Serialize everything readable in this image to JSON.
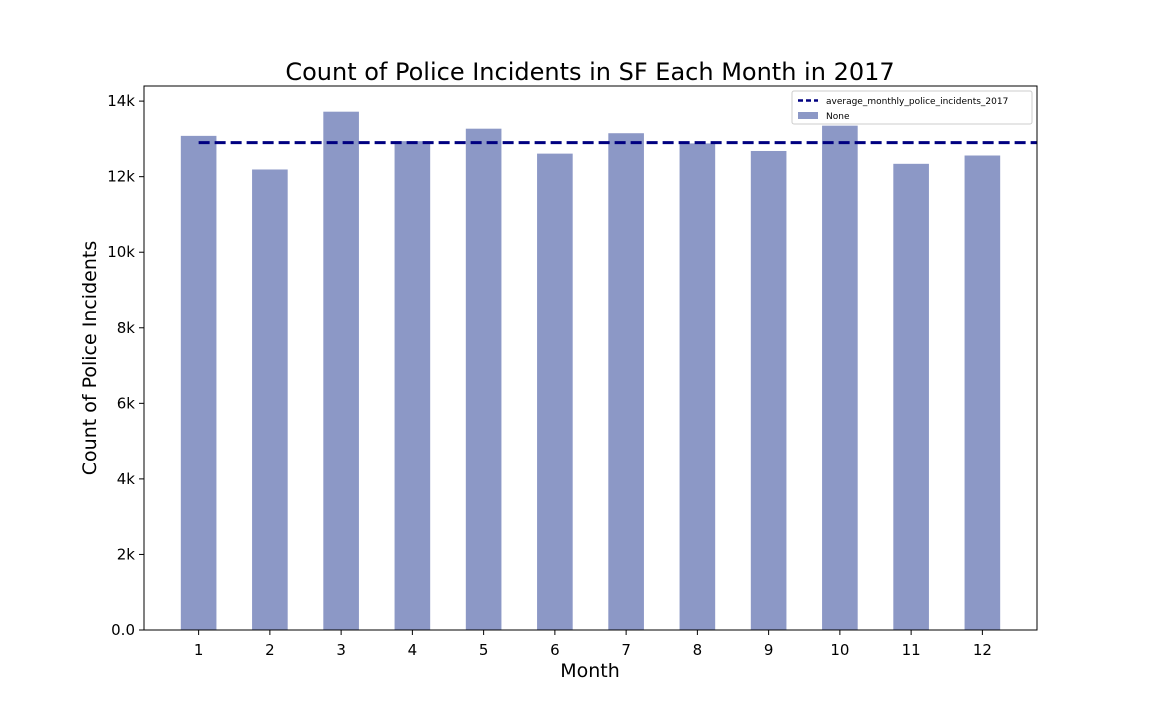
{
  "chart_data": {
    "type": "bar",
    "title": "Count of Police Incidents in SF Each Month in 2017",
    "xlabel": "Month",
    "ylabel": "Count of Police Incidents",
    "categories": [
      "1",
      "2",
      "3",
      "4",
      "5",
      "6",
      "7",
      "8",
      "9",
      "10",
      "11",
      "12"
    ],
    "series": [
      {
        "name": "None",
        "values": [
          13080,
          12190,
          13720,
          12940,
          13270,
          12610,
          13150,
          12880,
          12680,
          13350,
          12340,
          12560
        ]
      }
    ],
    "reference_line": {
      "name": "average_monthly_police_incidents_2017",
      "value": 12900,
      "style": "dashed"
    },
    "ylim": [
      0,
      14400
    ],
    "yticks": [
      0,
      2000,
      4000,
      6000,
      8000,
      10000,
      12000,
      14000
    ],
    "ytick_labels": [
      "0.0",
      "2k",
      "4k",
      "6k",
      "8k",
      "10k",
      "12k",
      "14k"
    ],
    "grid": false,
    "legend_position": "top-right",
    "colors": {
      "bar": "#8c98c6",
      "reference_line": "#000080",
      "axes": "#000000"
    }
  }
}
